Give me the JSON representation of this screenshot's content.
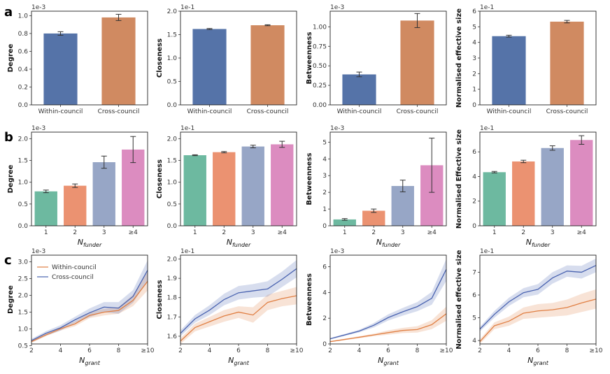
{
  "row_labels": [
    "a",
    "b",
    "c"
  ],
  "colors": {
    "within": "#5573a8",
    "cross": "#d08a61",
    "fund1": "#6db9a0",
    "fund2": "#eb9271",
    "fund3": "#97a6c6",
    "fund4": "#dc8cc0",
    "line_within": "#e07f43",
    "line_cross": "#4a63b0"
  },
  "chart_data": [
    {
      "id": "a1",
      "type": "bar",
      "categories": [
        "Within-council",
        "Cross-council"
      ],
      "values": [
        0.8,
        0.98
      ],
      "errors": [
        0.02,
        0.035
      ],
      "bar_colors": [
        "within",
        "cross"
      ],
      "ylabel": "Degree",
      "scale": "1e-3",
      "ylim": [
        0,
        1.05
      ],
      "yticks": [
        0,
        0.2,
        0.4,
        0.6,
        0.8,
        1.0
      ],
      "ytick_labels": [
        "0.0",
        "0.2",
        "0.4",
        "0.6",
        "0.8",
        "1.0"
      ]
    },
    {
      "id": "a2",
      "type": "bar",
      "categories": [
        "Within-council",
        "Cross-council"
      ],
      "values": [
        1.62,
        1.7
      ],
      "errors": [
        0.01,
        0.01
      ],
      "bar_colors": [
        "within",
        "cross"
      ],
      "ylabel": "Closeness",
      "scale": "1e-1",
      "ylim": [
        0,
        2.0
      ],
      "yticks": [
        0,
        0.5,
        1.0,
        1.5,
        2.0
      ],
      "ytick_labels": [
        "0.0",
        "0.5",
        "1.0",
        "1.5",
        "2.0"
      ]
    },
    {
      "id": "a3",
      "type": "bar",
      "categories": [
        "Within-council",
        "Cross-council"
      ],
      "values": [
        0.39,
        1.08
      ],
      "errors": [
        0.03,
        0.09
      ],
      "bar_colors": [
        "within",
        "cross"
      ],
      "ylabel": "Betweenness",
      "scale": "1e-3",
      "ylim": [
        0,
        1.2
      ],
      "yticks": [
        0,
        0.25,
        0.5,
        0.75,
        1.0
      ],
      "ytick_labels": [
        "0.00",
        "0.25",
        "0.50",
        "0.75",
        "1.00"
      ]
    },
    {
      "id": "a4",
      "type": "bar",
      "categories": [
        "Within-council",
        "Cross-council"
      ],
      "values": [
        4.4,
        5.33
      ],
      "errors": [
        0.06,
        0.08
      ],
      "bar_colors": [
        "within",
        "cross"
      ],
      "ylabel": "Normalised effective size",
      "scale": "1e-1",
      "ylim": [
        0,
        6
      ],
      "yticks": [
        0,
        1,
        2,
        3,
        4,
        5,
        6
      ],
      "ytick_labels": [
        "0",
        "1",
        "2",
        "3",
        "4",
        "5",
        "6"
      ]
    },
    {
      "id": "b1",
      "type": "bar",
      "categories": [
        "1",
        "2",
        "3",
        "≥4"
      ],
      "values": [
        0.79,
        0.92,
        1.46,
        1.75
      ],
      "errors": [
        0.03,
        0.04,
        0.14,
        0.3
      ],
      "bar_colors": [
        "fund1",
        "fund2",
        "fund3",
        "fund4"
      ],
      "ylabel": "Degree",
      "scale": "1e-3",
      "xlabel": "N",
      "xlabel_sub": "funder",
      "ylim": [
        0,
        2.15
      ],
      "yticks": [
        0,
        0.5,
        1.0,
        1.5,
        2.0
      ],
      "ytick_labels": [
        "0.0",
        "0.5",
        "1.0",
        "1.5",
        "2.0"
      ]
    },
    {
      "id": "b2",
      "type": "bar",
      "categories": [
        "1",
        "2",
        "3",
        "≥4"
      ],
      "values": [
        1.62,
        1.69,
        1.82,
        1.87
      ],
      "errors": [
        0.01,
        0.015,
        0.03,
        0.07
      ],
      "bar_colors": [
        "fund1",
        "fund2",
        "fund3",
        "fund4"
      ],
      "ylabel": "Closeness",
      "scale": "1e-1",
      "xlabel": "N",
      "xlabel_sub": "funder",
      "ylim": [
        0,
        2.15
      ],
      "yticks": [
        0,
        0.5,
        1.0,
        1.5,
        2.0
      ],
      "ytick_labels": [
        "0.0",
        "0.5",
        "1.0",
        "1.5",
        "2.0"
      ]
    },
    {
      "id": "b3",
      "type": "bar",
      "categories": [
        "1",
        "2",
        "3",
        "≥4"
      ],
      "values": [
        0.38,
        0.9,
        2.38,
        3.62
      ],
      "errors": [
        0.05,
        0.1,
        0.35,
        1.62
      ],
      "bar_colors": [
        "fund1",
        "fund2",
        "fund3",
        "fund4"
      ],
      "ylabel": "Betweenness",
      "scale": "1e-3",
      "xlabel": "N",
      "xlabel_sub": "funder",
      "ylim": [
        0,
        5.6
      ],
      "yticks": [
        0,
        1,
        2,
        3,
        4,
        5
      ],
      "ytick_labels": [
        "0",
        "1",
        "2",
        "3",
        "4",
        "5"
      ]
    },
    {
      "id": "b4",
      "type": "bar",
      "categories": [
        "1",
        "2",
        "3",
        "≥4"
      ],
      "values": [
        4.35,
        5.22,
        6.31,
        6.96
      ],
      "errors": [
        0.06,
        0.1,
        0.18,
        0.35
      ],
      "bar_colors": [
        "fund1",
        "fund2",
        "fund3",
        "fund4"
      ],
      "ylabel": "Normalised Effective size",
      "scale": "1e-1",
      "xlabel": "N",
      "xlabel_sub": "funder",
      "ylim": [
        0,
        7.6
      ],
      "yticks": [
        0,
        2,
        4,
        6
      ],
      "ytick_labels": [
        "0",
        "2",
        "4",
        "6"
      ]
    },
    {
      "id": "c1",
      "type": "line",
      "x": [
        2,
        3,
        4,
        5,
        6,
        7,
        8,
        9,
        10
      ],
      "series": [
        {
          "name": "Within-council",
          "color": "line_within",
          "values": [
            0.62,
            0.82,
            1.0,
            1.15,
            1.4,
            1.5,
            1.55,
            1.85,
            2.42
          ],
          "lower": [
            0.58,
            0.78,
            0.95,
            1.08,
            1.32,
            1.4,
            1.45,
            1.68,
            2.15
          ],
          "upper": [
            0.66,
            0.86,
            1.05,
            1.22,
            1.48,
            1.6,
            1.65,
            2.02,
            2.7
          ]
        },
        {
          "name": "Cross-council",
          "color": "line_cross",
          "values": [
            0.65,
            0.87,
            1.03,
            1.27,
            1.48,
            1.65,
            1.62,
            1.97,
            2.75
          ],
          "lower": [
            0.6,
            0.8,
            0.95,
            1.18,
            1.35,
            1.5,
            1.45,
            1.78,
            2.45
          ],
          "upper": [
            0.7,
            0.93,
            1.11,
            1.36,
            1.61,
            1.8,
            1.8,
            2.16,
            3.05
          ]
        }
      ],
      "ylabel": "Degree",
      "scale": "1e-3",
      "xlabel": "N",
      "xlabel_sub": "grant",
      "xlim": [
        2,
        10
      ],
      "ylim": [
        0.55,
        3.2
      ],
      "xticks": [
        2,
        4,
        6,
        8,
        10
      ],
      "xtick_labels": [
        "2",
        "4",
        "6",
        "8",
        "≥10"
      ],
      "yticks": [
        0.5,
        1.0,
        1.5,
        2.0,
        2.5,
        3.0
      ],
      "ytick_labels": [
        "0.5",
        "1.0",
        "1.5",
        "2.0",
        "2.5",
        "3.0"
      ],
      "legend": [
        "Within-council",
        "Cross-council"
      ]
    },
    {
      "id": "c2",
      "type": "line",
      "x": [
        2,
        3,
        4,
        5,
        6,
        7,
        8,
        9,
        10
      ],
      "series": [
        {
          "name": "Within-council",
          "color": "line_within",
          "values": [
            1.575,
            1.645,
            1.675,
            1.705,
            1.725,
            1.71,
            1.775,
            1.795,
            1.81
          ],
          "lower": [
            1.56,
            1.625,
            1.65,
            1.675,
            1.695,
            1.67,
            1.735,
            1.755,
            1.765
          ],
          "upper": [
            1.59,
            1.665,
            1.7,
            1.735,
            1.755,
            1.75,
            1.815,
            1.835,
            1.855
          ]
        },
        {
          "name": "Cross-council",
          "color": "line_cross",
          "values": [
            1.615,
            1.69,
            1.735,
            1.79,
            1.825,
            1.835,
            1.845,
            1.895,
            1.95
          ],
          "lower": [
            1.6,
            1.67,
            1.71,
            1.76,
            1.79,
            1.8,
            1.805,
            1.855,
            1.905
          ],
          "upper": [
            1.63,
            1.71,
            1.76,
            1.82,
            1.86,
            1.87,
            1.885,
            1.935,
            1.995
          ]
        }
      ],
      "ylabel": "Closeness",
      "scale": "1e-1",
      "xlabel": "N",
      "xlabel_sub": "grant",
      "xlim": [
        2,
        10
      ],
      "ylim": [
        1.56,
        2.02
      ],
      "xticks": [
        2,
        4,
        6,
        8,
        10
      ],
      "xtick_labels": [
        "2",
        "4",
        "6",
        "8",
        "≥10"
      ],
      "yticks": [
        1.6,
        1.7,
        1.8,
        1.9,
        2.0
      ],
      "ytick_labels": [
        "1.6",
        "1.7",
        "1.8",
        "1.9",
        "2.0"
      ]
    },
    {
      "id": "c3",
      "type": "line",
      "x": [
        2,
        3,
        4,
        5,
        6,
        7,
        8,
        9,
        10
      ],
      "series": [
        {
          "name": "Within-council",
          "color": "line_within",
          "values": [
            0.18,
            0.35,
            0.52,
            0.7,
            0.88,
            1.05,
            1.12,
            1.5,
            2.35
          ],
          "lower": [
            0.14,
            0.3,
            0.45,
            0.6,
            0.72,
            0.85,
            0.88,
            1.15,
            1.8
          ],
          "upper": [
            0.22,
            0.4,
            0.6,
            0.8,
            1.05,
            1.25,
            1.38,
            1.85,
            2.9
          ]
        },
        {
          "name": "Cross-council",
          "color": "line_cross",
          "values": [
            0.4,
            0.7,
            1.0,
            1.45,
            2.05,
            2.5,
            2.9,
            3.55,
            5.8
          ],
          "lower": [
            0.35,
            0.62,
            0.9,
            1.28,
            1.82,
            2.2,
            2.55,
            3.05,
            4.9
          ],
          "upper": [
            0.45,
            0.78,
            1.1,
            1.62,
            2.3,
            2.8,
            3.25,
            4.05,
            6.6
          ]
        }
      ],
      "ylabel": "Betweenness",
      "scale": "1e-3",
      "xlabel": "N",
      "xlabel_sub": "grant",
      "xlim": [
        2,
        10
      ],
      "ylim": [
        0,
        6.9
      ],
      "xticks": [
        2,
        4,
        6,
        8,
        10
      ],
      "xtick_labels": [
        "2",
        "4",
        "6",
        "8",
        "≥10"
      ],
      "yticks": [
        0,
        2,
        4,
        6
      ],
      "ytick_labels": [
        "0",
        "2",
        "4",
        "6"
      ]
    },
    {
      "id": "c4",
      "type": "line",
      "x": [
        2,
        3,
        4,
        5,
        6,
        7,
        8,
        9,
        10
      ],
      "series": [
        {
          "name": "Within-council",
          "color": "line_within",
          "values": [
            3.95,
            4.65,
            4.85,
            5.2,
            5.3,
            5.35,
            5.45,
            5.65,
            5.82
          ],
          "lower": [
            3.85,
            4.5,
            4.65,
            4.95,
            5.0,
            5.05,
            5.1,
            5.25,
            5.4
          ],
          "upper": [
            4.05,
            4.8,
            5.05,
            5.45,
            5.6,
            5.65,
            5.8,
            6.05,
            6.25
          ]
        },
        {
          "name": "Cross-council",
          "color": "line_cross",
          "values": [
            4.5,
            5.15,
            5.7,
            6.1,
            6.25,
            6.75,
            7.05,
            7.0,
            7.3
          ],
          "lower": [
            4.4,
            5.0,
            5.52,
            5.9,
            6.02,
            6.5,
            6.8,
            6.72,
            7.0
          ],
          "upper": [
            4.6,
            5.3,
            5.88,
            6.3,
            6.48,
            7.0,
            7.3,
            7.28,
            7.6
          ]
        }
      ],
      "ylabel": "Normalised effective size",
      "scale": "1e-1",
      "xlabel": "N",
      "xlabel_sub": "grant",
      "xlim": [
        2,
        10
      ],
      "ylim": [
        3.85,
        7.75
      ],
      "xticks": [
        2,
        4,
        6,
        8,
        10
      ],
      "xtick_labels": [
        "2",
        "4",
        "6",
        "8",
        "≥10"
      ],
      "yticks": [
        4,
        5,
        6,
        7
      ],
      "ytick_labels": [
        "4",
        "5",
        "6",
        "7"
      ]
    }
  ]
}
